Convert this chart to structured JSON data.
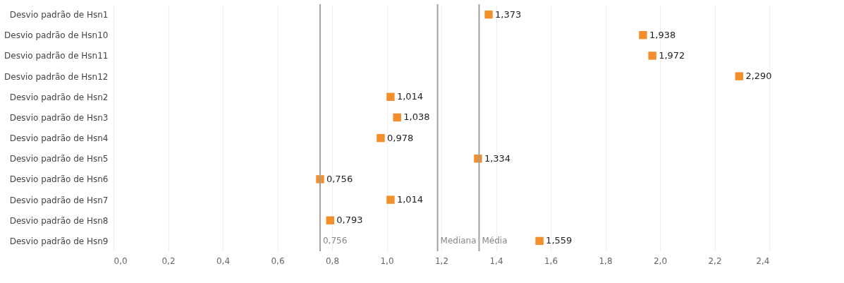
{
  "chart_data": {
    "type": "scatter",
    "orientation": "horizontal",
    "categories": [
      "Desvio padrão de Hsn1",
      "Desvio padrão de Hsn10",
      "Desvio padrão de Hsn11",
      "Desvio padrão de Hsn12",
      "Desvio padrão de Hsn2",
      "Desvio padrão de Hsn3",
      "Desvio padrão de Hsn4",
      "Desvio padrão de Hsn5",
      "Desvio padrão de Hsn6",
      "Desvio padrão de Hsn7",
      "Desvio padrão de Hsn8",
      "Desvio padrão de Hsn9"
    ],
    "series": [
      {
        "color": "#f28e2b",
        "values": [
          1.373,
          1.938,
          1.972,
          2.29,
          1.014,
          1.038,
          0.978,
          1.334,
          0.756,
          1.014,
          0.793,
          1.559
        ],
        "value_labels": [
          "1,373",
          "1,938",
          "1,972",
          "2,290",
          "1,014",
          "1,038",
          "0,978",
          "1,334",
          "0,756",
          "1,014",
          "0,793",
          "1,559"
        ]
      }
    ],
    "marker": "square",
    "xlim": [
      0,
      2.4
    ],
    "xticks": [
      {
        "value": 0,
        "label": "0,0"
      },
      {
        "value": 0.2,
        "label": "0,2"
      },
      {
        "value": 0.4,
        "label": "0,4"
      },
      {
        "value": 0.6,
        "label": "0,6"
      },
      {
        "value": 0.8,
        "label": "0,8"
      },
      {
        "value": 1.0,
        "label": "1,0"
      },
      {
        "value": 1.2,
        "label": "1,2"
      },
      {
        "value": 1.4,
        "label": "1,4"
      },
      {
        "value": 1.6,
        "label": "1,6"
      },
      {
        "value": 1.8,
        "label": "1,8"
      },
      {
        "value": 2.0,
        "label": "2,0"
      },
      {
        "value": 2.2,
        "label": "2,2"
      },
      {
        "value": 2.4,
        "label": "2,4"
      }
    ],
    "grid": "x",
    "ref_lines": [
      {
        "axis": "x",
        "value": 0.756,
        "label": "0,756",
        "color": "#a0a0a0"
      },
      {
        "axis": "x",
        "value": 1.186,
        "label": "Mediana",
        "color": "#a0a0a0"
      },
      {
        "axis": "x",
        "value": 1.338,
        "label": "Média",
        "color": "#a0a0a0"
      }
    ]
  }
}
